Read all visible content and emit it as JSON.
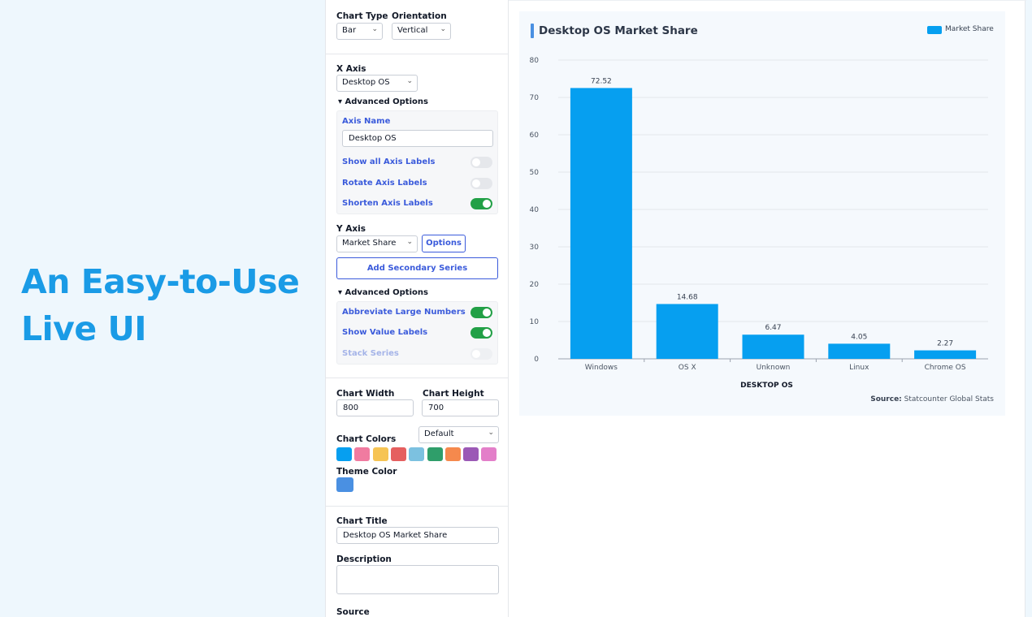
{
  "hero": {
    "line1": "An Easy-to-Use",
    "line2": "Live UI"
  },
  "panel": {
    "chart_type": {
      "label": "Chart Type",
      "value": "Bar"
    },
    "orientation": {
      "label": "Orientation",
      "value": "Vertical"
    },
    "x_axis": {
      "label": "X Axis",
      "value": "Desktop OS",
      "advanced_label": "▾ Advanced Options",
      "axis_name_label": "Axis Name",
      "axis_name_value": "Desktop OS",
      "show_all_labels": "Show all Axis Labels",
      "rotate_labels": "Rotate Axis Labels",
      "shorten_labels": "Shorten Axis Labels"
    },
    "y_axis": {
      "label": "Y Axis",
      "value": "Market Share",
      "options_button": "Options",
      "add_secondary": "Add Secondary Series",
      "advanced_label": "▾ Advanced Options",
      "abbreviate": "Abbreviate Large Numbers",
      "show_values": "Show Value Labels",
      "stack_series": "Stack Series"
    },
    "chart_width": {
      "label": "Chart Width",
      "value": "800"
    },
    "chart_height": {
      "label": "Chart Height",
      "value": "700"
    },
    "chart_colors": {
      "label": "Chart Colors",
      "preset": "Default",
      "swatches": [
        "#069ff0",
        "#f07ba0",
        "#f6c454",
        "#e55f5f",
        "#7cc1e0",
        "#2f9e6a",
        "#f5894d",
        "#9b59b6",
        "#e37fc9"
      ]
    },
    "theme_color": {
      "label": "Theme Color",
      "value": "#4a90e2"
    },
    "chart_title": {
      "label": "Chart Title",
      "value": "Desktop OS Market Share"
    },
    "description": {
      "label": "Description",
      "value": ""
    },
    "source": {
      "label": "Source"
    }
  },
  "chart_data": {
    "type": "bar",
    "title": "Desktop OS Market Share",
    "xlabel": "DESKTOP OS",
    "ylabel": "",
    "categories": [
      "Windows",
      "OS X",
      "Unknown",
      "Linux",
      "Chrome OS"
    ],
    "series": [
      {
        "name": "Market Share",
        "values": [
          72.52,
          14.68,
          6.47,
          4.05,
          2.27
        ],
        "color": "#069ff0"
      }
    ],
    "value_labels": [
      "72.52",
      "14.68",
      "6.47",
      "4.05",
      "2.27"
    ],
    "ylim": [
      0,
      80
    ],
    "yticks": [
      "0",
      "10",
      "20",
      "30",
      "40",
      "50",
      "60",
      "70",
      "80"
    ],
    "grid": true,
    "legend": "top-right",
    "source_prefix": "Source:",
    "source_text": "Statcounter Global Stats"
  }
}
